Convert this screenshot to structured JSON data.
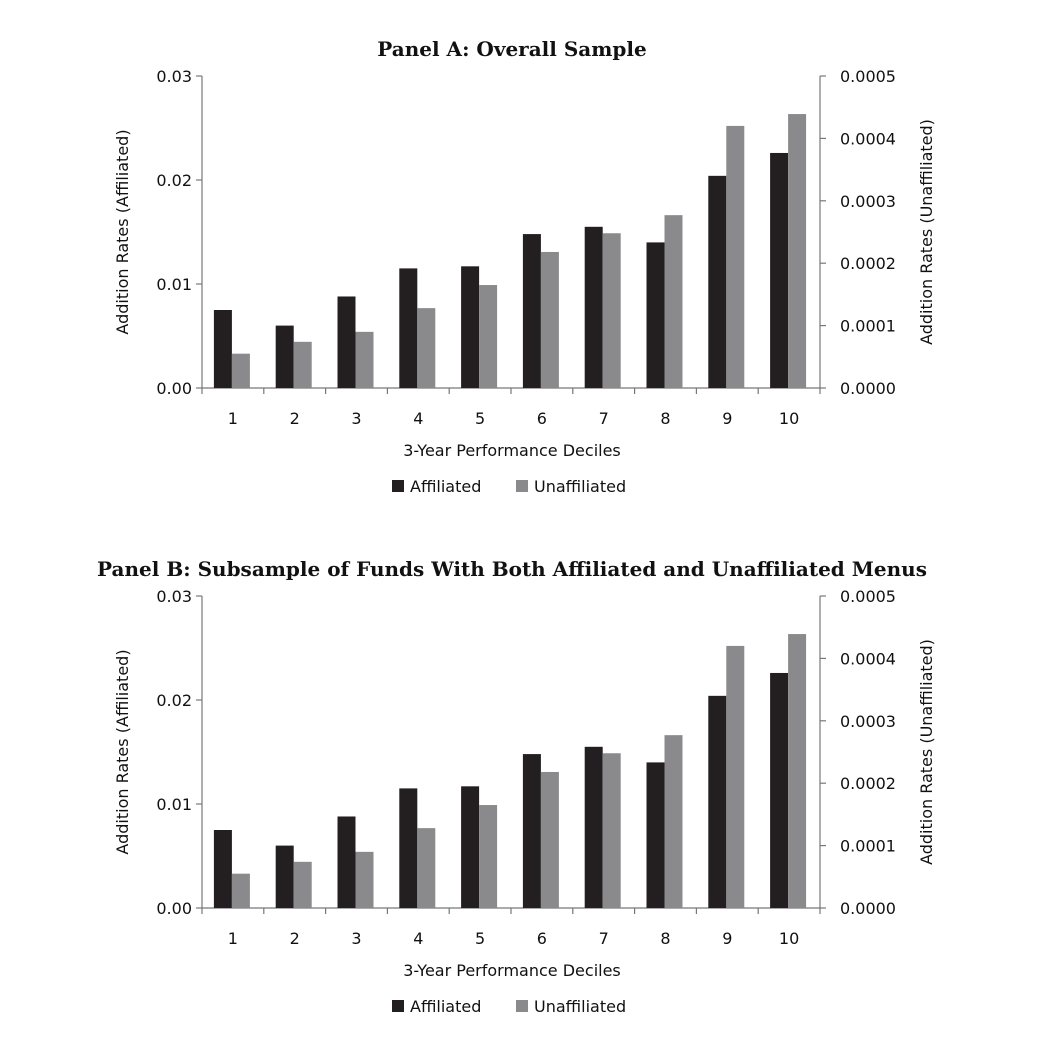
{
  "chart_data": [
    {
      "type": "bar",
      "title": "Panel A: Overall Sample",
      "xlabel": "3-Year Performance Deciles",
      "ylabel_left": "Addition Rates (Affiliated)",
      "ylabel_right": "Addition Rates (Unaffiliated)",
      "categories": [
        "1",
        "2",
        "3",
        "4",
        "5",
        "6",
        "7",
        "8",
        "9",
        "10"
      ],
      "ylim_left": [
        0,
        0.03
      ],
      "yticks_left": [
        "0.00",
        "0.01",
        "0.02",
        "0.03"
      ],
      "ylim_right": [
        0,
        0.0005
      ],
      "yticks_right": [
        "0.0000",
        "0.0001",
        "0.0002",
        "0.0003",
        "0.0004",
        "0.0005"
      ],
      "legend_position": "bottom",
      "series": [
        {
          "name": "Affiliated",
          "axis": "left",
          "color": "#231f20",
          "values": [
            0.0075,
            0.006,
            0.0088,
            0.0115,
            0.0117,
            0.0148,
            0.0155,
            0.014,
            0.0204,
            0.0226
          ]
        },
        {
          "name": "Unaffiliated",
          "axis": "right",
          "color": "#8a8a8c",
          "values": [
            5.5e-05,
            7.4e-05,
            9e-05,
            0.000128,
            0.000165,
            0.000218,
            0.000248,
            0.000277,
            0.00042,
            0.000439
          ]
        }
      ]
    },
    {
      "type": "bar",
      "title": "Panel B: Subsample of Funds With Both Affiliated and Unaffiliated Menus",
      "xlabel": "3-Year Performance Deciles",
      "ylabel_left": "Addition Rates (Affiliated)",
      "ylabel_right": "Addition Rates (Unaffiliated)",
      "categories": [
        "1",
        "2",
        "3",
        "4",
        "5",
        "6",
        "7",
        "8",
        "9",
        "10"
      ],
      "ylim_left": [
        0,
        0.03
      ],
      "yticks_left": [
        "0.00",
        "0.01",
        "0.02",
        "0.03"
      ],
      "ylim_right": [
        0,
        0.0005
      ],
      "yticks_right": [
        "0.0000",
        "0.0001",
        "0.0002",
        "0.0003",
        "0.0004",
        "0.0005"
      ],
      "legend_position": "bottom",
      "series": [
        {
          "name": "Affiliated",
          "axis": "left",
          "color": "#231f20",
          "values": [
            0.0075,
            0.006,
            0.0088,
            0.0115,
            0.0117,
            0.0148,
            0.0155,
            0.014,
            0.0204,
            0.0226
          ]
        },
        {
          "name": "Unaffiliated",
          "axis": "right",
          "color": "#8a8a8c",
          "values": [
            5.5e-05,
            7.4e-05,
            9e-05,
            0.000128,
            0.000165,
            0.000218,
            0.000248,
            0.000277,
            0.00042,
            0.000439
          ]
        }
      ]
    }
  ]
}
